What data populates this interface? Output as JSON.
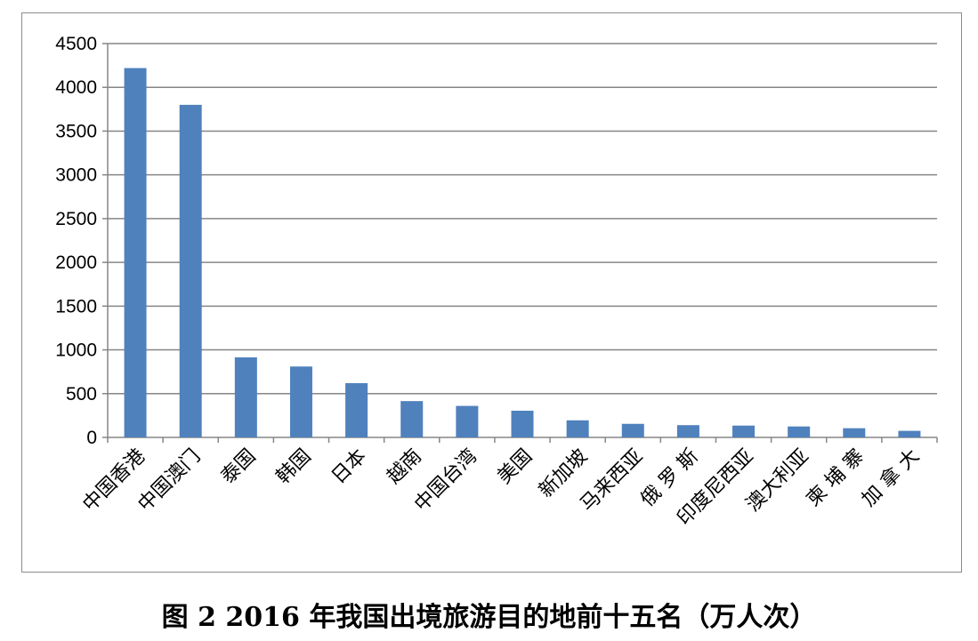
{
  "caption": "图 2 2016 年我国出境旅游目的地前十五名（万人次）",
  "chart_data": {
    "type": "bar",
    "title": "",
    "xlabel": "",
    "ylabel": "",
    "categories": [
      "中国香港",
      "中国澳门",
      "泰国",
      "韩国",
      "日本",
      "越南",
      "中国台湾",
      "美国",
      "新加坡",
      "马来西亚",
      "俄 罗 斯",
      "印度尼西亚",
      "澳大利亚",
      "柬 埔 寨",
      "加 拿 大"
    ],
    "series": [
      {
        "values": [
          4220,
          3800,
          915,
          810,
          620,
          415,
          360,
          305,
          195,
          155,
          140,
          135,
          125,
          105,
          75
        ]
      }
    ],
    "ylim": [
      0,
      4500
    ],
    "yticks": [
      "0",
      "500",
      "1000",
      "1500",
      "2000",
      "2500",
      "3000",
      "3500",
      "4000",
      "4500"
    ],
    "grid": true,
    "bar_color": "#4f81bd",
    "grid_color": "#868686"
  }
}
